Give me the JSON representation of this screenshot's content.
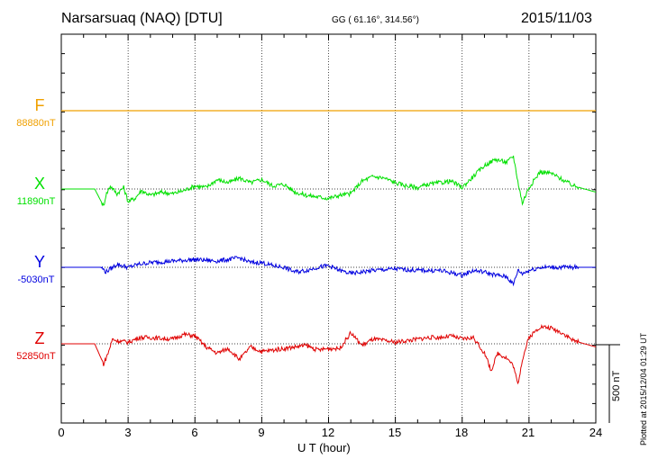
{
  "header": {
    "station": "Narsarsuaq (NAQ)  [DTU]",
    "coords": "GG ( 61.16°, 314.56°)",
    "date": "2015/11/03"
  },
  "plotted_note": "Plotted at 2015/12/04 01:29 UT",
  "chart_data": {
    "type": "line",
    "xlabel": "U T (hour)",
    "xlim": [
      0,
      24
    ],
    "xticks": [
      "0",
      "3",
      "6",
      "9",
      "12",
      "15",
      "18",
      "21",
      "24"
    ],
    "scale_label": "500 nT",
    "scale_nT": 500,
    "grid": true,
    "series": [
      {
        "name": "F",
        "baseline": "88880nT",
        "color": "#f0a000",
        "x": [
          0,
          24
        ],
        "values": [
          0,
          0
        ]
      },
      {
        "name": "X",
        "baseline": "11890nT",
        "color": "#00e000",
        "x": [
          0,
          1.5,
          1.9,
          2.0,
          2.2,
          2.5,
          2.8,
          3.0,
          3.3,
          3.6,
          4.0,
          4.5,
          5.0,
          5.5,
          6.0,
          6.5,
          7.0,
          7.5,
          8.0,
          8.5,
          9.0,
          9.5,
          10.0,
          10.5,
          11.0,
          11.5,
          12.0,
          12.5,
          13.0,
          13.5,
          14.0,
          14.5,
          15.0,
          15.5,
          16.0,
          16.5,
          17.0,
          17.5,
          18.0,
          18.5,
          19.0,
          19.5,
          20.0,
          20.3,
          20.5,
          20.7,
          21.0,
          21.5,
          22.0,
          22.5,
          23.0,
          23.5,
          24.0
        ],
        "values": [
          0,
          0,
          -110,
          -40,
          20,
          -30,
          10,
          -80,
          -60,
          -10,
          -40,
          -20,
          -30,
          -10,
          20,
          10,
          60,
          40,
          70,
          40,
          60,
          20,
          30,
          -20,
          -40,
          -50,
          -60,
          -40,
          -30,
          50,
          80,
          70,
          40,
          20,
          10,
          30,
          40,
          50,
          10,
          80,
          150,
          190,
          170,
          210,
          50,
          -90,
          10,
          110,
          100,
          60,
          20,
          0,
          -20
        ]
      },
      {
        "name": "Y",
        "baseline": "-5030nT",
        "color": "#0000e0",
        "x": [
          0,
          1.8,
          2.0,
          2.5,
          3.0,
          3.5,
          4.0,
          5.0,
          6.0,
          7.0,
          8.0,
          8.5,
          9.0,
          9.5,
          10.0,
          10.5,
          11.0,
          11.5,
          12.0,
          12.5,
          13.0,
          13.5,
          14.0,
          15.0,
          16.0,
          17.0,
          18.0,
          18.5,
          19.0,
          19.5,
          20.0,
          20.3,
          20.5,
          20.7,
          21.0,
          21.5,
          22.0,
          24.0
        ],
        "values": [
          0,
          0,
          -30,
          20,
          0,
          20,
          30,
          40,
          50,
          40,
          60,
          30,
          30,
          10,
          0,
          -30,
          -20,
          0,
          10,
          -20,
          -40,
          -30,
          -20,
          -10,
          -20,
          -20,
          -50,
          -20,
          -30,
          -50,
          -60,
          -110,
          -20,
          -40,
          -20,
          0,
          0,
          0
        ]
      },
      {
        "name": "Z",
        "baseline": "52850nT",
        "color": "#e00000",
        "x": [
          0,
          1.5,
          1.9,
          2.1,
          2.3,
          2.5,
          3.0,
          3.5,
          4.0,
          5.0,
          5.5,
          6.0,
          6.5,
          7.0,
          7.5,
          8.0,
          8.5,
          9.0,
          9.5,
          10.0,
          10.5,
          11.0,
          11.5,
          12.0,
          12.5,
          13.0,
          13.5,
          14.0,
          14.5,
          15.0,
          15.5,
          16.0,
          16.5,
          17.0,
          17.5,
          18.0,
          18.5,
          19.0,
          19.3,
          19.6,
          20.0,
          20.3,
          20.5,
          20.7,
          21.0,
          21.5,
          22.0,
          22.5,
          23.0,
          23.5,
          24.0
        ],
        "values": [
          0,
          0,
          -130,
          -60,
          30,
          20,
          10,
          40,
          40,
          30,
          60,
          50,
          -20,
          -60,
          -30,
          -100,
          -20,
          -50,
          -40,
          -30,
          -20,
          -10,
          -40,
          -30,
          -30,
          70,
          -10,
          30,
          20,
          10,
          20,
          30,
          40,
          40,
          50,
          30,
          40,
          -60,
          -170,
          -60,
          -90,
          -140,
          -260,
          -100,
          40,
          110,
          100,
          70,
          20,
          0,
          -20
        ]
      }
    ]
  }
}
